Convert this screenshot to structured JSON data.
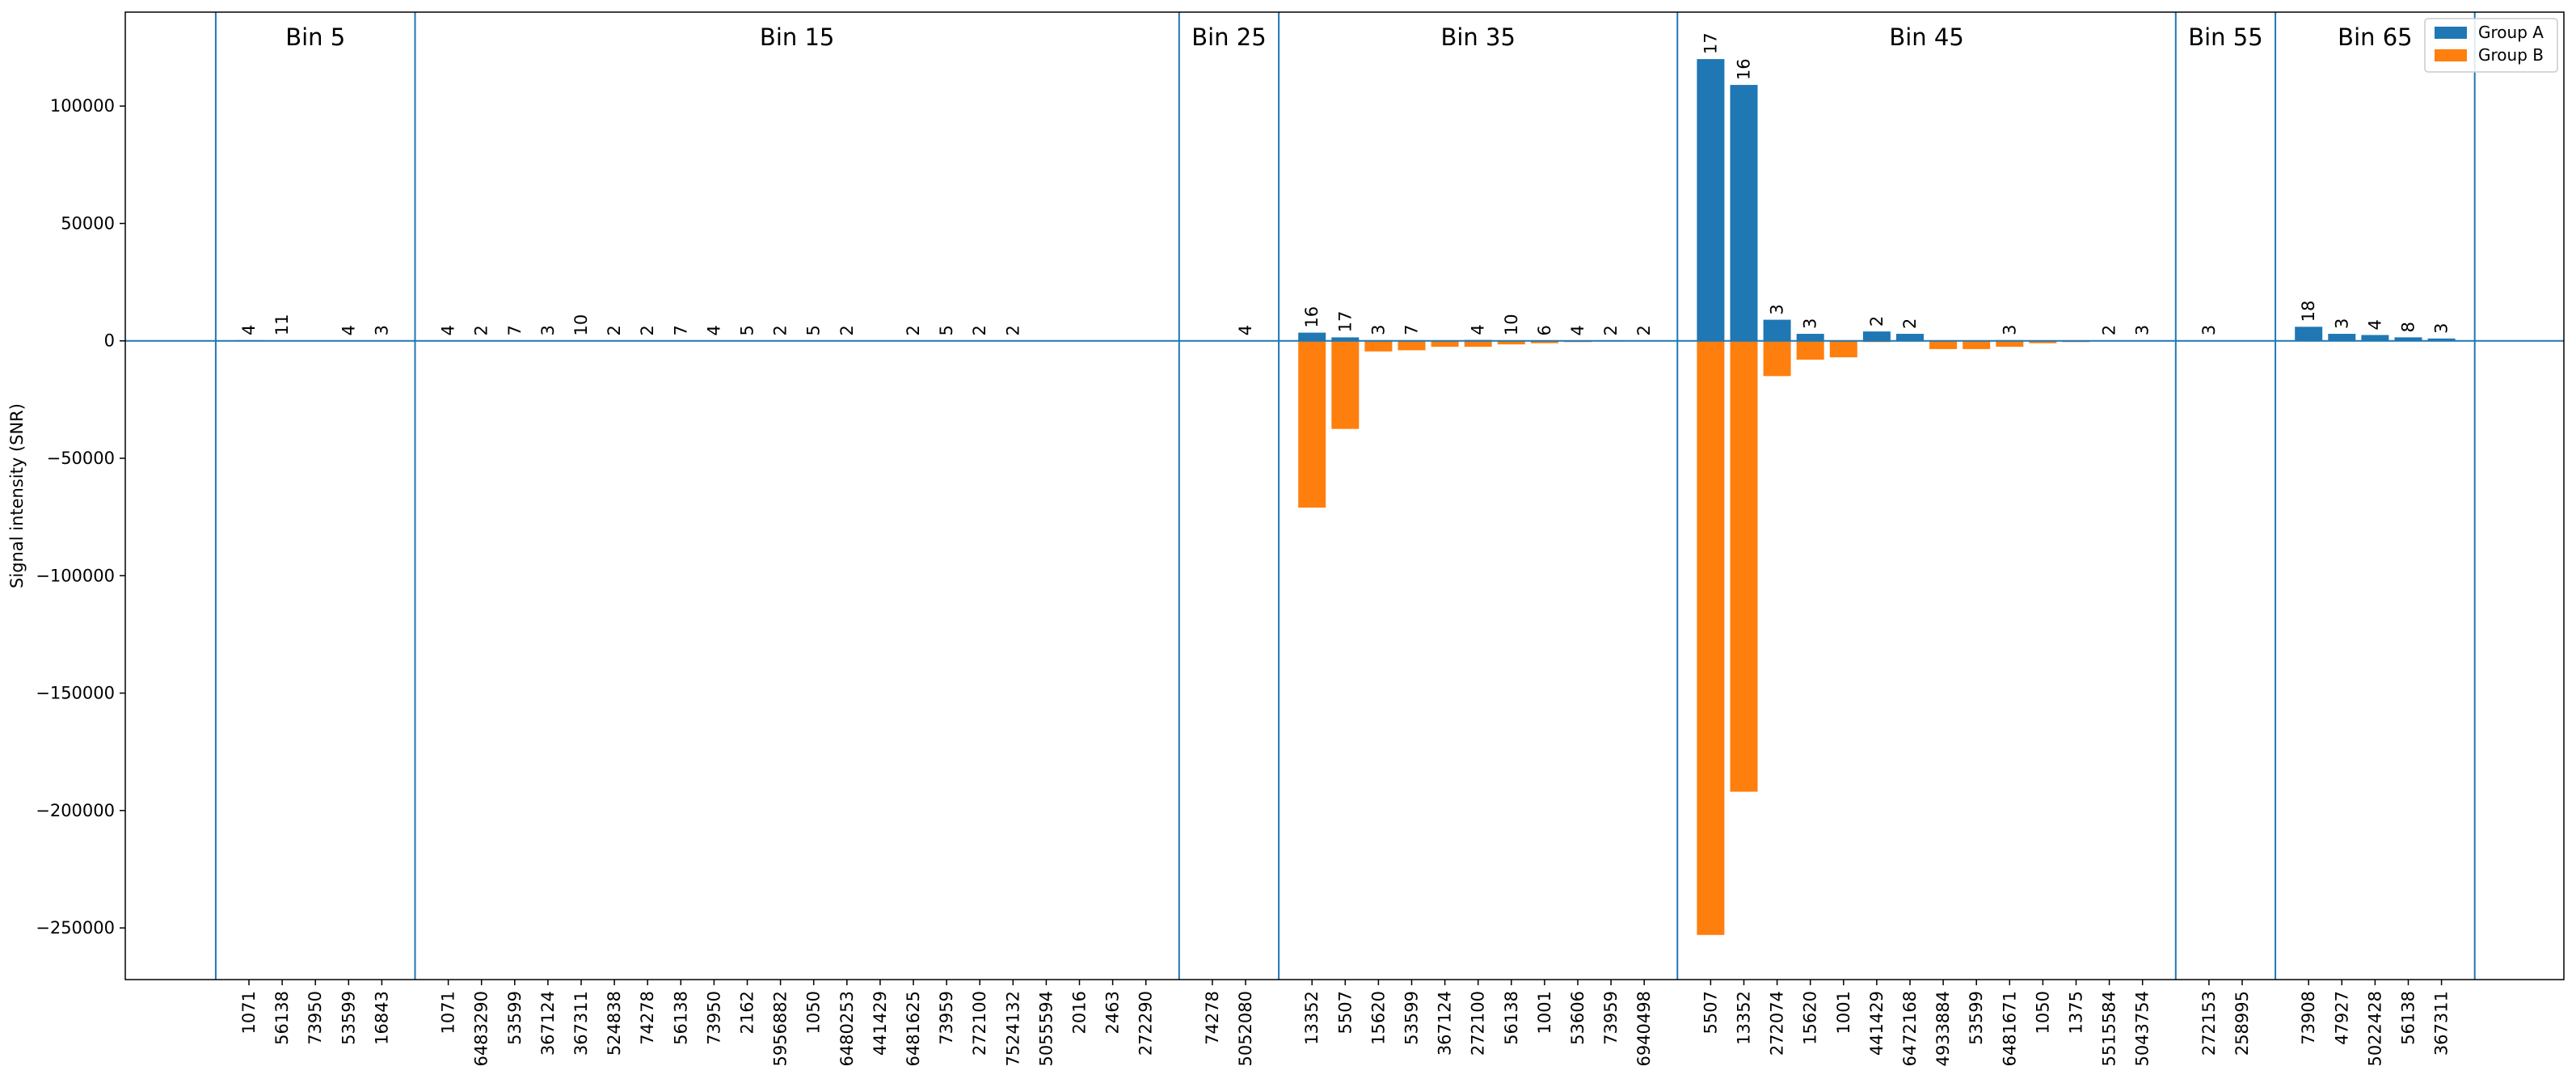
{
  "chart_data": {
    "type": "bar",
    "ylabel": "Signal intensity (SNR)",
    "ylim": [
      -272000,
      140000
    ],
    "yticks": [
      -250000,
      -200000,
      -150000,
      -100000,
      -50000,
      0,
      50000,
      100000
    ],
    "legend_position": "top-right",
    "grid": false,
    "colors": {
      "a": "#1f77b4",
      "b": "#ff7f0e",
      "separator": "#1f77b4"
    },
    "series": [
      {
        "name": "Group A",
        "color": "#1f77b4"
      },
      {
        "name": "Group B",
        "color": "#ff7f0e"
      }
    ],
    "bins": [
      {
        "label": "Bin 5",
        "items": [
          {
            "x": "1071",
            "a": 300,
            "b": 0,
            "n": "4"
          },
          {
            "x": "56138",
            "a": 200,
            "b": 0,
            "n": "11"
          },
          {
            "x": "73950",
            "a": 0,
            "b": 0,
            "n": ""
          },
          {
            "x": "53599",
            "a": 150,
            "b": 0,
            "n": "4"
          },
          {
            "x": "16843",
            "a": 150,
            "b": 0,
            "n": "3"
          }
        ]
      },
      {
        "label": "Bin 15",
        "items": [
          {
            "x": "1071",
            "a": 150,
            "b": 0,
            "n": "4"
          },
          {
            "x": "6483290",
            "a": 100,
            "b": 0,
            "n": "2"
          },
          {
            "x": "53599",
            "a": 100,
            "b": 0,
            "n": "7"
          },
          {
            "x": "367124",
            "a": 100,
            "b": 0,
            "n": "3"
          },
          {
            "x": "367311",
            "a": 100,
            "b": 0,
            "n": "10"
          },
          {
            "x": "524838",
            "a": 100,
            "b": 0,
            "n": "2"
          },
          {
            "x": "74278",
            "a": 100,
            "b": 0,
            "n": "2"
          },
          {
            "x": "56138",
            "a": 100,
            "b": 0,
            "n": "7"
          },
          {
            "x": "73950",
            "a": 100,
            "b": 0,
            "n": "4"
          },
          {
            "x": "2162",
            "a": 100,
            "b": 0,
            "n": "5"
          },
          {
            "x": "5956882",
            "a": 100,
            "b": 0,
            "n": "2"
          },
          {
            "x": "1050",
            "a": 100,
            "b": 0,
            "n": "5"
          },
          {
            "x": "6480253",
            "a": 100,
            "b": 0,
            "n": "2"
          },
          {
            "x": "441429",
            "a": 0,
            "b": 0,
            "n": ""
          },
          {
            "x": "6481625",
            "a": 100,
            "b": 0,
            "n": "2"
          },
          {
            "x": "73959",
            "a": 100,
            "b": 0,
            "n": "5"
          },
          {
            "x": "272100",
            "a": 100,
            "b": 0,
            "n": "2"
          },
          {
            "x": "7524132",
            "a": 100,
            "b": 0,
            "n": "2"
          },
          {
            "x": "5055594",
            "a": 0,
            "b": 0,
            "n": ""
          },
          {
            "x": "2016",
            "a": 0,
            "b": 0,
            "n": ""
          },
          {
            "x": "2463",
            "a": 0,
            "b": 0,
            "n": ""
          },
          {
            "x": "272290",
            "a": 0,
            "b": 0,
            "n": ""
          }
        ]
      },
      {
        "label": "Bin 25",
        "items": [
          {
            "x": "74278",
            "a": 0,
            "b": 0,
            "n": ""
          },
          {
            "x": "5052080",
            "a": 150,
            "b": 0,
            "n": "4"
          }
        ]
      },
      {
        "label": "Bin 35",
        "items": [
          {
            "x": "13352",
            "a": 3500,
            "b": -71000,
            "n": "16"
          },
          {
            "x": "5507",
            "a": 1500,
            "b": -37500,
            "n": "17"
          },
          {
            "x": "15620",
            "a": 300,
            "b": -4500,
            "n": "3"
          },
          {
            "x": "53599",
            "a": 300,
            "b": -4000,
            "n": "7"
          },
          {
            "x": "367124",
            "a": 200,
            "b": -2500,
            "n": ""
          },
          {
            "x": "272100",
            "a": 400,
            "b": -2500,
            "n": "4"
          },
          {
            "x": "56138",
            "a": 200,
            "b": -1500,
            "n": "10"
          },
          {
            "x": "1001",
            "a": 100,
            "b": -1000,
            "n": "6"
          },
          {
            "x": "53606",
            "a": 100,
            "b": -500,
            "n": "4"
          },
          {
            "x": "73959",
            "a": 100,
            "b": -300,
            "n": "2"
          },
          {
            "x": "6940498",
            "a": 100,
            "b": -200,
            "n": "2"
          }
        ]
      },
      {
        "label": "Bin 45",
        "items": [
          {
            "x": "5507",
            "a": 120000,
            "b": -253000,
            "n": "17"
          },
          {
            "x": "13352",
            "a": 109000,
            "b": -192000,
            "n": "16"
          },
          {
            "x": "272074",
            "a": 9000,
            "b": -15000,
            "n": "3"
          },
          {
            "x": "15620",
            "a": 3000,
            "b": -8000,
            "n": "3"
          },
          {
            "x": "1001",
            "a": 200,
            "b": -7000,
            "n": ""
          },
          {
            "x": "441429",
            "a": 4000,
            "b": -500,
            "n": "2"
          },
          {
            "x": "6472168",
            "a": 3000,
            "b": -300,
            "n": "2"
          },
          {
            "x": "4933884",
            "a": 200,
            "b": -3500,
            "n": ""
          },
          {
            "x": "53599",
            "a": 200,
            "b": -3500,
            "n": ""
          },
          {
            "x": "6481671",
            "a": 300,
            "b": -2500,
            "n": "3"
          },
          {
            "x": "1050",
            "a": 100,
            "b": -1000,
            "n": ""
          },
          {
            "x": "1375",
            "a": 100,
            "b": -500,
            "n": ""
          },
          {
            "x": "5515584",
            "a": 200,
            "b": -200,
            "n": "2"
          },
          {
            "x": "5043754",
            "a": 200,
            "b": -200,
            "n": "3"
          }
        ]
      },
      {
        "label": "Bin 55",
        "items": [
          {
            "x": "272153",
            "a": 200,
            "b": 0,
            "n": "3"
          },
          {
            "x": "258995",
            "a": 0,
            "b": 0,
            "n": ""
          }
        ]
      },
      {
        "label": "Bin 65",
        "items": [
          {
            "x": "73908",
            "a": 6000,
            "b": 0,
            "n": "18"
          },
          {
            "x": "47927",
            "a": 3000,
            "b": 0,
            "n": "3"
          },
          {
            "x": "5022428",
            "a": 2500,
            "b": 0,
            "n": "4"
          },
          {
            "x": "56138",
            "a": 1500,
            "b": 0,
            "n": "8"
          },
          {
            "x": "367311",
            "a": 1000,
            "b": 0,
            "n": "3"
          }
        ]
      }
    ]
  }
}
